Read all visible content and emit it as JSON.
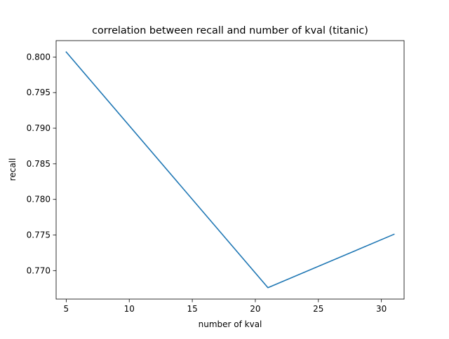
{
  "chart_data": {
    "type": "line",
    "title": "correlation between recall and number of kval (titanic)",
    "xlabel": "number of kval",
    "ylabel": "recall",
    "xlim": [
      4.2,
      31.8
    ],
    "ylim": [
      0.766,
      0.8023
    ],
    "xticks": [
      5,
      10,
      15,
      20,
      25,
      30
    ],
    "yticks": [
      0.77,
      0.775,
      0.78,
      0.785,
      0.79,
      0.795,
      0.8
    ],
    "xtick_labels": [
      "5",
      "10",
      "15",
      "20",
      "25",
      "30"
    ],
    "ytick_labels": [
      "0.770",
      "0.775",
      "0.780",
      "0.785",
      "0.790",
      "0.795",
      "0.800"
    ],
    "grid": false,
    "series": [
      {
        "color": "#1f77b4",
        "x": [
          5,
          21,
          31
        ],
        "y": [
          0.8007,
          0.7676,
          0.7751
        ]
      }
    ]
  }
}
